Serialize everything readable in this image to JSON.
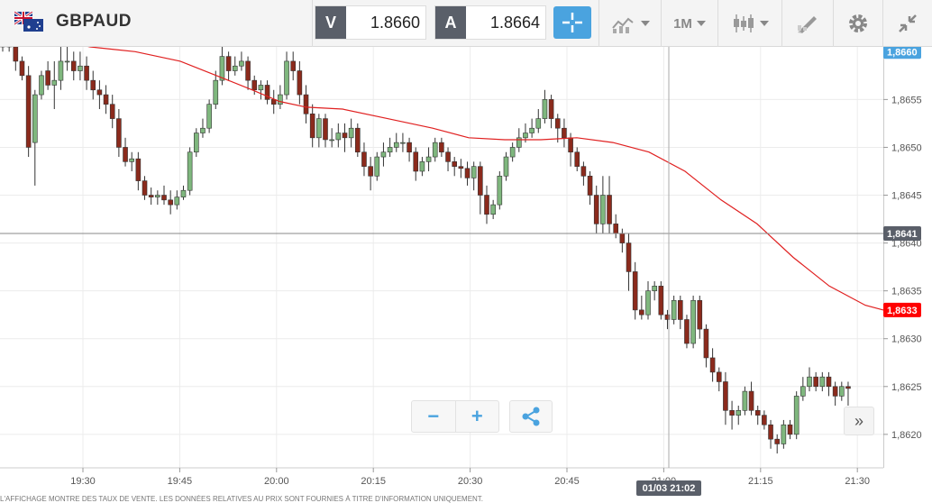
{
  "symbol": "GBPAUD",
  "bid": {
    "label": "V",
    "value": "1.8660"
  },
  "ask": {
    "label": "A",
    "value": "1.8664"
  },
  "timeframe": "1M",
  "zoom": {
    "minus": "−",
    "plus": "+"
  },
  "fast_forward": "»",
  "crosshair_time": "01/03 21:02",
  "disclaimer": "L'AFFICHAGE MONTRE DES TAUX DE VENTE. LES DONNÉES RELATIVES AU PRIX SONT FOURNIES À TITRE D'INFORMATION UNIQUEMENT.",
  "colors": {
    "up": "#7fb77e",
    "down": "#8b2a1c",
    "ma": "#e02020",
    "accent": "#4aa3df",
    "current_price_bg": "#4aa3df",
    "ma_price_bg": "#ff0000",
    "crosshair_price_bg": "#5a5f69"
  },
  "chart_data": {
    "type": "candlestick",
    "x_tick_labels": [
      "19:30",
      "19:45",
      "20:00",
      "20:15",
      "20:30",
      "20:45",
      "21:00",
      "21:15",
      "21:30"
    ],
    "y_tick_labels": [
      "1,8620",
      "1,8625",
      "1,8630",
      "1,8635",
      "1,8640",
      "1,8645",
      "1,8650",
      "1,8655"
    ],
    "ylim": [
      1.86165,
      1.86605
    ],
    "price_labels": {
      "current": "1,8660",
      "moving_average": "1,8633",
      "crosshair": "1,8641"
    },
    "values": {
      "current": 1.866,
      "moving_average": 1.8633,
      "crosshair": 1.8641
    },
    "candles": [
      [
        1.86615,
        1.86605,
        1.86615,
        1.866
      ],
      [
        1.8661,
        1.86605,
        1.86615,
        1.866
      ],
      [
        1.86605,
        1.8659,
        1.8661,
        1.8658
      ],
      [
        1.8659,
        1.86575,
        1.86595,
        1.8657
      ],
      [
        1.86575,
        1.865,
        1.86585,
        1.8649
      ],
      [
        1.86505,
        1.86555,
        1.8656,
        1.8646
      ],
      [
        1.86555,
        1.86575,
        1.8658,
        1.8655
      ],
      [
        1.8658,
        1.86565,
        1.8659,
        1.8656
      ],
      [
        1.86565,
        1.8657,
        1.8659,
        1.8654
      ],
      [
        1.8657,
        1.8659,
        1.86605,
        1.8656
      ],
      [
        1.8659,
        1.8659,
        1.86605,
        1.8658
      ],
      [
        1.8659,
        1.8658,
        1.866,
        1.8657
      ],
      [
        1.8658,
        1.86585,
        1.866,
        1.8657
      ],
      [
        1.86585,
        1.8657,
        1.86595,
        1.8656
      ],
      [
        1.8657,
        1.8656,
        1.8658,
        1.8655
      ],
      [
        1.8656,
        1.86555,
        1.8657,
        1.8654
      ],
      [
        1.86555,
        1.86545,
        1.86565,
        1.86535
      ],
      [
        1.86545,
        1.8653,
        1.86555,
        1.8652
      ],
      [
        1.8653,
        1.865,
        1.8654,
        1.8649
      ],
      [
        1.865,
        1.86485,
        1.8651,
        1.8648
      ],
      [
        1.86485,
        1.86488,
        1.86495,
        1.86475
      ],
      [
        1.86488,
        1.86465,
        1.86495,
        1.86455
      ],
      [
        1.86465,
        1.8645,
        1.8647,
        1.86445
      ],
      [
        1.8645,
        1.86448,
        1.86458,
        1.8644
      ],
      [
        1.86448,
        1.8645,
        1.86455,
        1.8644
      ],
      [
        1.8645,
        1.86445,
        1.8646,
        1.8644
      ],
      [
        1.86445,
        1.8644,
        1.86455,
        1.8643
      ],
      [
        1.8644,
        1.86448,
        1.86455,
        1.86435
      ],
      [
        1.86448,
        1.86455,
        1.8646,
        1.86445
      ],
      [
        1.86455,
        1.86495,
        1.865,
        1.8645
      ],
      [
        1.86495,
        1.86515,
        1.8652,
        1.8649
      ],
      [
        1.86515,
        1.8652,
        1.8653,
        1.8651
      ],
      [
        1.8652,
        1.86545,
        1.8655,
        1.86515
      ],
      [
        1.86545,
        1.8657,
        1.8658,
        1.8654
      ],
      [
        1.8657,
        1.86595,
        1.86605,
        1.86565
      ],
      [
        1.86595,
        1.8658,
        1.866,
        1.8657
      ],
      [
        1.8658,
        1.86585,
        1.86595,
        1.86575
      ],
      [
        1.86585,
        1.8659,
        1.866,
        1.8658
      ],
      [
        1.8659,
        1.8657,
        1.86595,
        1.8656
      ],
      [
        1.8657,
        1.8656,
        1.86575,
        1.86555
      ],
      [
        1.8656,
        1.86565,
        1.8657,
        1.8655
      ],
      [
        1.86565,
        1.8655,
        1.8657,
        1.86545
      ],
      [
        1.8655,
        1.86545,
        1.8656,
        1.86535
      ],
      [
        1.86545,
        1.86555,
        1.86565,
        1.8654
      ],
      [
        1.86555,
        1.8659,
        1.866,
        1.8655
      ],
      [
        1.8659,
        1.8658,
        1.866,
        1.8657
      ],
      [
        1.8658,
        1.86555,
        1.8659,
        1.86545
      ],
      [
        1.86555,
        1.86535,
        1.86565,
        1.86525
      ],
      [
        1.86535,
        1.8651,
        1.86545,
        1.865
      ],
      [
        1.8651,
        1.8653,
        1.86535,
        1.865
      ],
      [
        1.8653,
        1.86508,
        1.86535,
        1.865
      ],
      [
        1.86508,
        1.86508,
        1.8652,
        1.865
      ],
      [
        1.86508,
        1.86515,
        1.86525,
        1.865
      ],
      [
        1.86515,
        1.8651,
        1.86525,
        1.86495
      ],
      [
        1.8651,
        1.8652,
        1.8653,
        1.865
      ],
      [
        1.8652,
        1.86495,
        1.86525,
        1.8649
      ],
      [
        1.86495,
        1.8648,
        1.86505,
        1.8647
      ],
      [
        1.8648,
        1.8647,
        1.8649,
        1.86455
      ],
      [
        1.8647,
        1.8649,
        1.86495,
        1.86465
      ],
      [
        1.8649,
        1.86495,
        1.86505,
        1.8648
      ],
      [
        1.86495,
        1.865,
        1.8651,
        1.8649
      ],
      [
        1.865,
        1.86505,
        1.86515,
        1.86495
      ],
      [
        1.86505,
        1.86505,
        1.86515,
        1.86495
      ],
      [
        1.86505,
        1.86495,
        1.8651,
        1.86485
      ],
      [
        1.86495,
        1.86475,
        1.865,
        1.86465
      ],
      [
        1.86475,
        1.86485,
        1.8649,
        1.8647
      ],
      [
        1.86485,
        1.8649,
        1.865,
        1.86475
      ],
      [
        1.8649,
        1.86505,
        1.8651,
        1.86485
      ],
      [
        1.86505,
        1.86495,
        1.8651,
        1.8649
      ],
      [
        1.86495,
        1.86485,
        1.865,
        1.86475
      ],
      [
        1.86485,
        1.8648,
        1.8649,
        1.8647
      ],
      [
        1.8648,
        1.86478,
        1.86488,
        1.86468
      ],
      [
        1.86478,
        1.86468,
        1.86485,
        1.8646
      ],
      [
        1.86468,
        1.8648,
        1.86485,
        1.86455
      ],
      [
        1.8648,
        1.8645,
        1.86485,
        1.8643
      ],
      [
        1.8645,
        1.8643,
        1.8646,
        1.8642
      ],
      [
        1.8643,
        1.8644,
        1.86445,
        1.86425
      ],
      [
        1.8644,
        1.8647,
        1.86475,
        1.86435
      ],
      [
        1.8647,
        1.8649,
        1.86495,
        1.86465
      ],
      [
        1.8649,
        1.865,
        1.86505,
        1.86485
      ],
      [
        1.865,
        1.8651,
        1.8652,
        1.86495
      ],
      [
        1.8651,
        1.86515,
        1.86525,
        1.86505
      ],
      [
        1.86515,
        1.8652,
        1.8653,
        1.8651
      ],
      [
        1.8652,
        1.8653,
        1.8654,
        1.86515
      ],
      [
        1.8653,
        1.8655,
        1.8656,
        1.86525
      ],
      [
        1.8655,
        1.8653,
        1.86555,
        1.8652
      ],
      [
        1.8653,
        1.8652,
        1.86535,
        1.86505
      ],
      [
        1.8652,
        1.8651,
        1.8653,
        1.865
      ],
      [
        1.8651,
        1.86495,
        1.86515,
        1.8648
      ],
      [
        1.86495,
        1.8648,
        1.865,
        1.86475
      ],
      [
        1.8648,
        1.8647,
        1.86485,
        1.8646
      ],
      [
        1.8647,
        1.8645,
        1.86475,
        1.8644
      ],
      [
        1.8645,
        1.8642,
        1.8646,
        1.8641
      ],
      [
        1.8642,
        1.8645,
        1.8647,
        1.8641
      ],
      [
        1.8645,
        1.8642,
        1.8647,
        1.8641
      ],
      [
        1.8642,
        1.8641,
        1.8643,
        1.86405
      ],
      [
        1.8641,
        1.864,
        1.86415,
        1.8639
      ],
      [
        1.864,
        1.8637,
        1.8641,
        1.8635
      ],
      [
        1.8637,
        1.8633,
        1.8638,
        1.8632
      ],
      [
        1.8633,
        1.86325,
        1.86345,
        1.8632
      ],
      [
        1.86325,
        1.8635,
        1.8636,
        1.8632
      ],
      [
        1.8635,
        1.86355,
        1.8636,
        1.8634
      ],
      [
        1.86355,
        1.86325,
        1.8636,
        1.8632
      ],
      [
        1.86325,
        1.8632,
        1.8633,
        1.8631
      ],
      [
        1.8632,
        1.8634,
        1.86345,
        1.86315
      ],
      [
        1.8634,
        1.8632,
        1.86345,
        1.8631
      ],
      [
        1.8632,
        1.86295,
        1.86325,
        1.8629
      ],
      [
        1.86295,
        1.8634,
        1.86345,
        1.8629
      ],
      [
        1.8634,
        1.8631,
        1.86345,
        1.863
      ],
      [
        1.8631,
        1.8628,
        1.86315,
        1.8627
      ],
      [
        1.8628,
        1.86265,
        1.8629,
        1.86255
      ],
      [
        1.86265,
        1.86255,
        1.8627,
        1.86245
      ],
      [
        1.86255,
        1.86225,
        1.86265,
        1.8621
      ],
      [
        1.86225,
        1.8622,
        1.86235,
        1.86205
      ],
      [
        1.8622,
        1.86225,
        1.8623,
        1.8621
      ],
      [
        1.86225,
        1.86245,
        1.8625,
        1.8622
      ],
      [
        1.86245,
        1.86225,
        1.86255,
        1.8622
      ],
      [
        1.86225,
        1.8622,
        1.8623,
        1.8621
      ],
      [
        1.8622,
        1.8621,
        1.86225,
        1.86205
      ],
      [
        1.8621,
        1.86195,
        1.86215,
        1.86185
      ],
      [
        1.86195,
        1.8619,
        1.862,
        1.8618
      ],
      [
        1.8619,
        1.8621,
        1.86215,
        1.86185
      ],
      [
        1.8621,
        1.862,
        1.86215,
        1.86195
      ],
      [
        1.862,
        1.8624,
        1.86245,
        1.86195
      ],
      [
        1.8624,
        1.8625,
        1.8626,
        1.86235
      ],
      [
        1.8625,
        1.8626,
        1.8627,
        1.86245
      ],
      [
        1.8626,
        1.8625,
        1.86265,
        1.86245
      ],
      [
        1.8625,
        1.8626,
        1.86265,
        1.86245
      ],
      [
        1.8626,
        1.8625,
        1.86265,
        1.8624
      ],
      [
        1.8625,
        1.8624,
        1.86255,
        1.8623
      ],
      [
        1.8624,
        1.8625,
        1.86255,
        1.86235
      ],
      [
        1.8625,
        1.86248,
        1.86255,
        1.8623
      ]
    ],
    "moving_average": [
      [
        0,
        1.86625
      ],
      [
        100,
        1.86605
      ],
      [
        150,
        1.866
      ],
      [
        200,
        1.8659
      ],
      [
        240,
        1.86575
      ],
      [
        280,
        1.8656
      ],
      [
        310,
        1.86548
      ],
      [
        340,
        1.86542
      ],
      [
        380,
        1.8654
      ],
      [
        430,
        1.8653
      ],
      [
        480,
        1.8652
      ],
      [
        520,
        1.8651
      ],
      [
        560,
        1.86508
      ],
      [
        600,
        1.86508
      ],
      [
        640,
        1.8651
      ],
      [
        680,
        1.86505
      ],
      [
        720,
        1.86495
      ],
      [
        760,
        1.86475
      ],
      [
        800,
        1.86445
      ],
      [
        840,
        1.8642
      ],
      [
        880,
        1.86385
      ],
      [
        920,
        1.86355
      ],
      [
        960,
        1.86335
      ],
      [
        980,
        1.8633
      ]
    ]
  }
}
